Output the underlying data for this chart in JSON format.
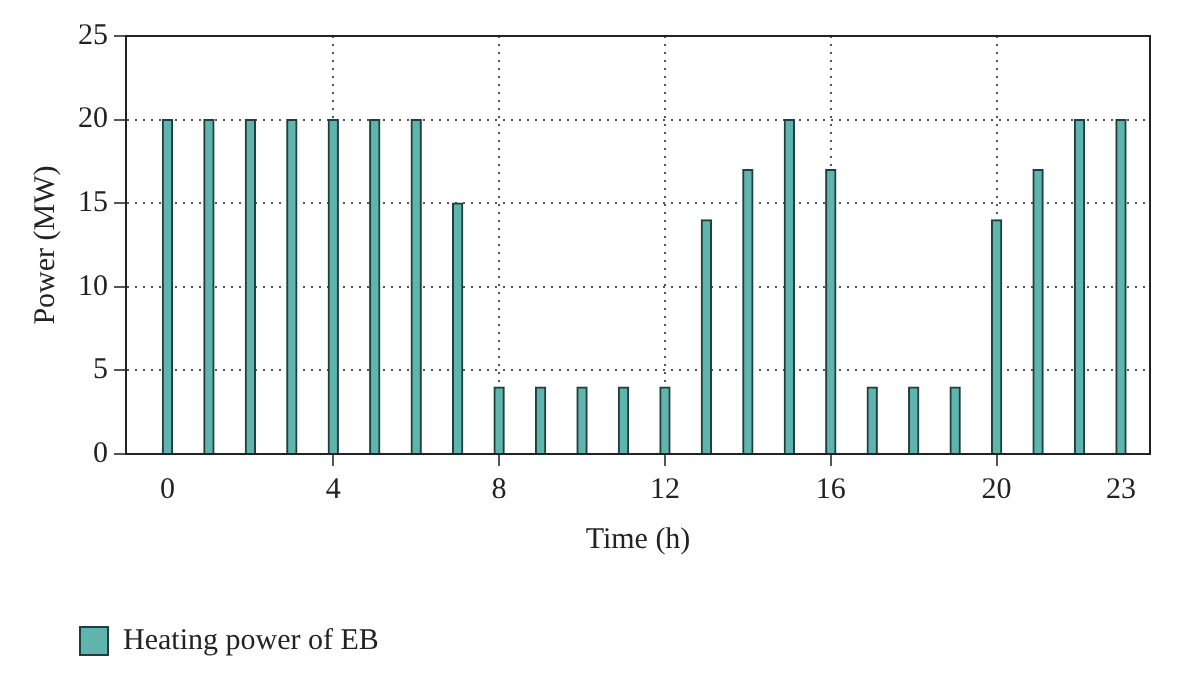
{
  "chart_data": {
    "type": "bar",
    "xlabel": "Time (h)",
    "ylabel": "Power (MW)",
    "x": [
      0,
      1,
      2,
      3,
      4,
      5,
      6,
      7,
      8,
      9,
      10,
      11,
      12,
      13,
      14,
      15,
      16,
      17,
      18,
      19,
      20,
      21,
      22,
      23
    ],
    "series": [
      {
        "name": "Heating power of EB",
        "color": "#5fb5ad",
        "values": [
          20,
          20,
          20,
          20,
          20,
          20,
          20,
          15,
          4,
          4,
          4,
          4,
          4,
          14,
          17,
          20,
          17,
          4,
          4,
          4,
          14,
          17,
          20,
          20
        ]
      }
    ],
    "xlim": [
      -1,
      23.7
    ],
    "xticks": [
      0,
      4,
      8,
      12,
      16,
      20,
      23
    ],
    "ylim": [
      0,
      25
    ],
    "yticks": [
      0,
      5,
      10,
      15,
      20,
      25
    ],
    "grid": true,
    "line_style": "dotted",
    "legend": "bottom left"
  }
}
